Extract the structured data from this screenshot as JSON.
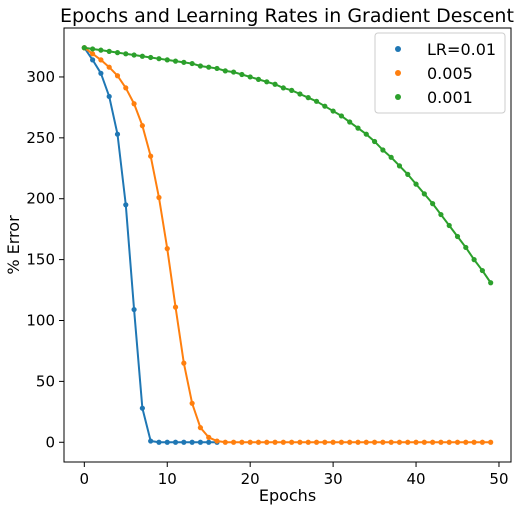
{
  "chart_data": {
    "type": "line",
    "title": "Epochs and Learning Rates in Gradient Descent",
    "xlabel": "Epochs",
    "ylabel": "% Error",
    "xlim": [
      -2.45,
      51.45
    ],
    "ylim": [
      -16.2,
      340.2
    ],
    "xticks": [
      0,
      10,
      20,
      30,
      40,
      50
    ],
    "yticks": [
      0,
      50,
      100,
      150,
      200,
      250,
      300
    ],
    "grid": false,
    "legend_position": "top-right",
    "markers": true,
    "series": [
      {
        "name": "LR=0.01",
        "color": "#1f77b4",
        "x": [
          0,
          1,
          2,
          3,
          4,
          5,
          6,
          7,
          8,
          9,
          10,
          11,
          12,
          13,
          14,
          15,
          16
        ],
        "y": [
          324,
          314,
          303,
          284,
          253,
          195,
          109,
          28,
          1,
          0,
          0,
          0,
          0,
          0,
          0,
          0,
          0
        ]
      },
      {
        "name": "0.005",
        "color": "#ff7f0e",
        "x": [
          0,
          1,
          2,
          3,
          4,
          5,
          6,
          7,
          8,
          9,
          10,
          11,
          12,
          13,
          14,
          15,
          16,
          17,
          18,
          19,
          20,
          21,
          22,
          23,
          24,
          25,
          26,
          27,
          28,
          29,
          30,
          31,
          32,
          33,
          34,
          35,
          36,
          37,
          38,
          39,
          40,
          41,
          42,
          43,
          44,
          45,
          46,
          47,
          48,
          49
        ],
        "y": [
          324,
          319,
          314,
          308,
          301,
          291,
          278,
          260,
          235,
          201,
          159,
          111,
          65,
          32,
          12,
          4,
          1,
          0,
          0,
          0,
          0,
          0,
          0,
          0,
          0,
          0,
          0,
          0,
          0,
          0,
          0,
          0,
          0,
          0,
          0,
          0,
          0,
          0,
          0,
          0,
          0,
          0,
          0,
          0,
          0,
          0,
          0,
          0,
          0,
          0
        ]
      },
      {
        "name": "0.001",
        "color": "#2ca02c",
        "x": [
          0,
          1,
          2,
          3,
          4,
          5,
          6,
          7,
          8,
          9,
          10,
          11,
          12,
          13,
          14,
          15,
          16,
          17,
          18,
          19,
          20,
          21,
          22,
          23,
          24,
          25,
          26,
          27,
          28,
          29,
          30,
          31,
          32,
          33,
          34,
          35,
          36,
          37,
          38,
          39,
          40,
          41,
          42,
          43,
          44,
          45,
          46,
          47,
          48,
          49
        ],
        "y": [
          324,
          323,
          322,
          321,
          320,
          319,
          318,
          317,
          316,
          315,
          314,
          313,
          312,
          311,
          309,
          308,
          307,
          305,
          304,
          302,
          300,
          298,
          296,
          294,
          291,
          289,
          286,
          283,
          280,
          276,
          272,
          268,
          263,
          258,
          253,
          247,
          240,
          234,
          227,
          220,
          212,
          204,
          196,
          187,
          178,
          169,
          160,
          150,
          141,
          131
        ]
      }
    ]
  }
}
